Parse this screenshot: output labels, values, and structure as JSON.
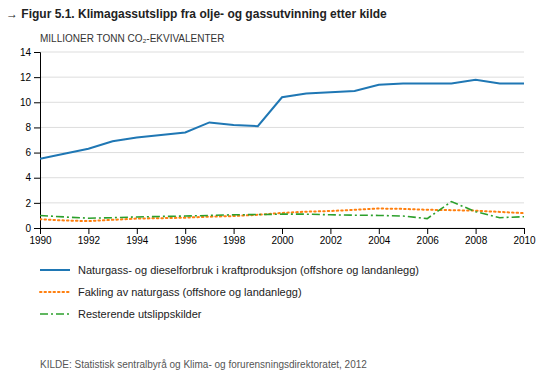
{
  "chart_data": {
    "type": "line",
    "title": "→ Figur 5.1. Klimagassutslipp fra olje- og gassutvinning etter kilde",
    "ylabel": "MILLIONER TONN CO₂-EKVIVALENTER",
    "source": "KILDE: Statistisk sentralbyrå og Klima- og forurensningsdirektoratet, 2012",
    "x": [
      1990,
      1991,
      1992,
      1993,
      1994,
      1995,
      1996,
      1997,
      1998,
      1999,
      2000,
      2001,
      2002,
      2003,
      2004,
      2005,
      2006,
      2007,
      2008,
      2009,
      2010
    ],
    "series": [
      {
        "name": "Naturgass- og dieselforbruk i kraftproduksjon (offshore og landanlegg)",
        "line_style": "solid",
        "values": [
          5.5,
          5.9,
          6.3,
          6.9,
          7.2,
          7.4,
          7.6,
          8.4,
          8.2,
          8.1,
          10.4,
          10.7,
          10.8,
          10.9,
          11.4,
          11.5,
          11.5,
          11.5,
          11.8,
          11.5,
          11.5
        ]
      },
      {
        "name": "Fakling av naturgass (offshore og landanlegg)",
        "line_style": "dotted",
        "values": [
          0.7,
          0.6,
          0.55,
          0.65,
          0.75,
          0.78,
          0.82,
          0.9,
          0.95,
          1.05,
          1.2,
          1.3,
          1.35,
          1.45,
          1.55,
          1.52,
          1.45,
          1.42,
          1.38,
          1.28,
          1.18
        ]
      },
      {
        "name": "Resterende utslippskilder",
        "line_style": "dashdot",
        "values": [
          1.0,
          0.88,
          0.78,
          0.82,
          0.88,
          0.92,
          0.95,
          1.0,
          1.05,
          1.07,
          1.1,
          1.1,
          1.05,
          1.02,
          1.0,
          0.95,
          0.75,
          2.1,
          1.3,
          0.82,
          0.9
        ]
      }
    ],
    "xlim": [
      1990,
      2010
    ],
    "xticks": [
      1990,
      1992,
      1994,
      1996,
      1998,
      2000,
      2002,
      2004,
      2006,
      2008,
      2010
    ],
    "ylim": [
      0,
      14
    ],
    "yticks": [
      0,
      2,
      4,
      6,
      8,
      10,
      12,
      14
    ],
    "grid": true,
    "legend": "bottom"
  }
}
